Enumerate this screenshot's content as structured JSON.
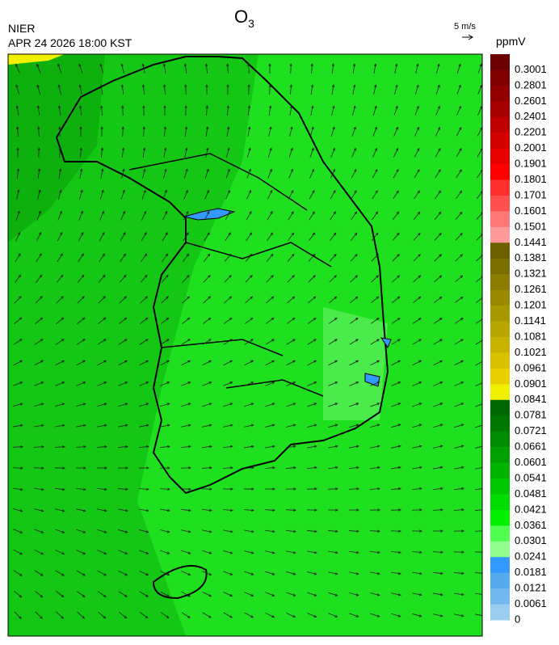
{
  "header": {
    "title": {
      "text": "O",
      "subscript": "3"
    },
    "agency": "NIER",
    "datetime": "APR 24 2026 18:00 KST",
    "wind_scale": "5 m/s"
  },
  "colorbar": {
    "unit": "ppmV",
    "labels": [
      "0.3001",
      "0.2801",
      "0.2601",
      "0.2401",
      "0.2201",
      "0.2001",
      "0.1901",
      "0.1801",
      "0.1701",
      "0.1601",
      "0.1501",
      "0.1441",
      "0.1381",
      "0.1321",
      "0.1261",
      "0.1201",
      "0.1141",
      "0.1081",
      "0.1021",
      "0.0961",
      "0.0901",
      "0.0841",
      "0.0781",
      "0.0721",
      "0.0661",
      "0.0601",
      "0.0541",
      "0.0481",
      "0.0421",
      "0.0361",
      "0.0301",
      "0.0241",
      "0.0181",
      "0.0121",
      "0.0061",
      "0"
    ],
    "colors": [
      "#6b0000",
      "#7f0000",
      "#930000",
      "#a80000",
      "#bf0000",
      "#d40000",
      "#e80000",
      "#ff0000",
      "#ff3030",
      "#ff5050",
      "#ff7878",
      "#ff9a9a",
      "#6b6000",
      "#7a6e00",
      "#8a7c00",
      "#998a00",
      "#a89800",
      "#b8a600",
      "#c8b400",
      "#d8c200",
      "#e8d000",
      "#f0f000",
      "#006600",
      "#007800",
      "#008c00",
      "#00a000",
      "#00b400",
      "#00c800",
      "#00dc00",
      "#00f000",
      "#50ff50",
      "#90ff90",
      "#3399ff",
      "#55aaee",
      "#70b8ee",
      "#99ccee"
    ]
  }
}
